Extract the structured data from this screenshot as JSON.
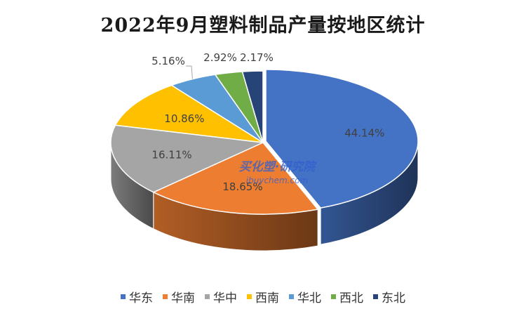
{
  "title": "2022年9月塑料制品产量按地区统计",
  "watermark": {
    "logo_text": "买化塑·研究院",
    "logo_subtext": "ibuychem.com"
  },
  "chart_data": {
    "type": "pie",
    "title": "2022年9月塑料制品产量按地区统计",
    "style": "3d",
    "legend_position": "bottom",
    "slices": [
      {
        "label": "华东",
        "value": 44.14,
        "display": "44.14%",
        "color": "#4472c4"
      },
      {
        "label": "华南",
        "value": 18.65,
        "display": "18.65%",
        "color": "#ed7d31"
      },
      {
        "label": "华中",
        "value": 16.11,
        "display": "16.11%",
        "color": "#a5a5a5"
      },
      {
        "label": "西南",
        "value": 10.86,
        "display": "10.86%",
        "color": "#ffc000"
      },
      {
        "label": "华北",
        "value": 5.16,
        "display": "5.16%",
        "color": "#5b9bd5"
      },
      {
        "label": "西北",
        "value": 2.92,
        "display": "2.92%",
        "color": "#70ad47"
      },
      {
        "label": "东北",
        "value": 2.17,
        "display": "2.17%",
        "color": "#264478"
      }
    ]
  }
}
